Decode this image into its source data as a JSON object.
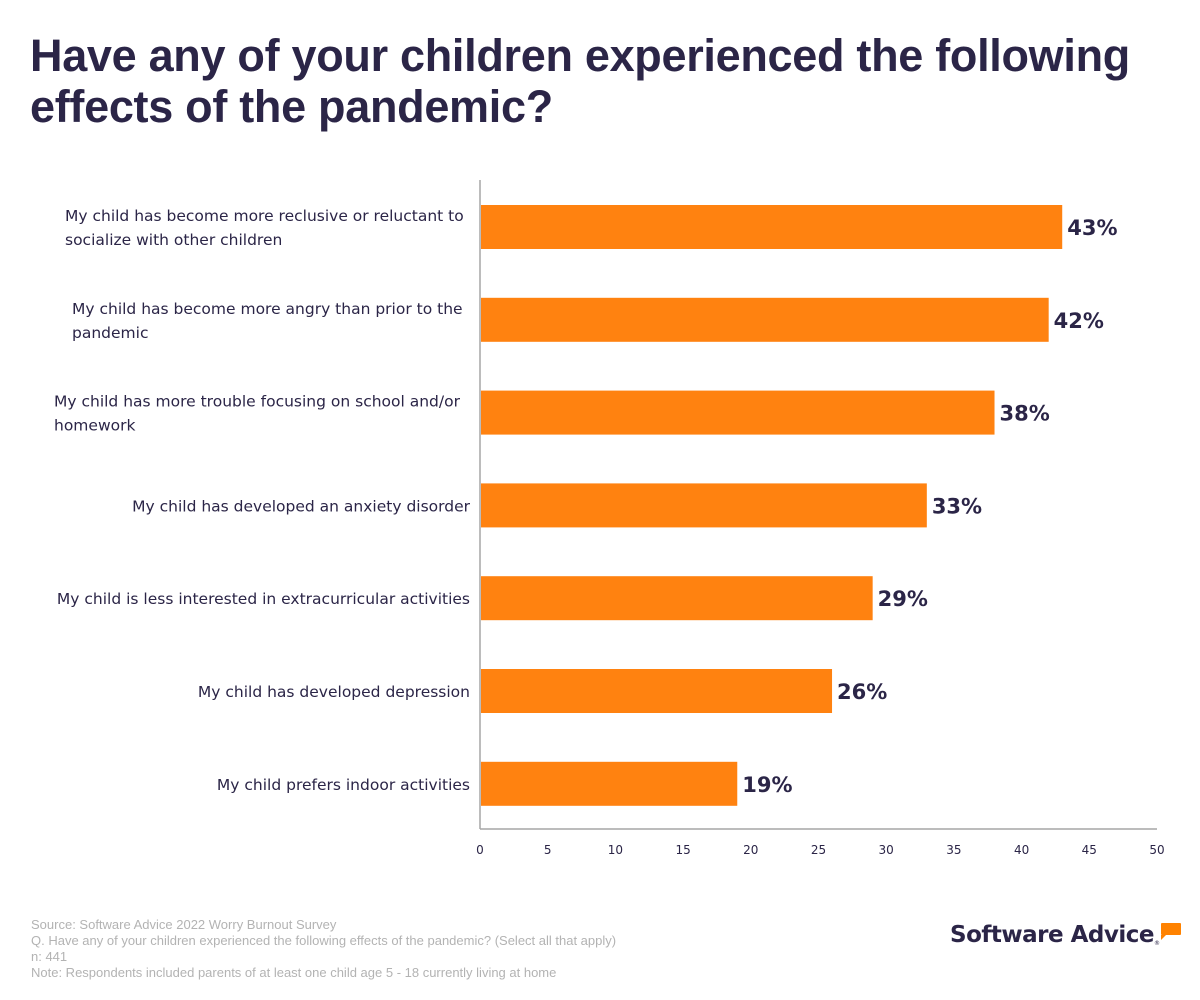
{
  "chart_data": {
    "type": "bar",
    "orientation": "horizontal",
    "title": "Have any of your children experienced the following effects of the pandemic?",
    "xlabel": "",
    "ylabel": "",
    "xlim": [
      0,
      50
    ],
    "xticks": [
      0,
      5,
      10,
      15,
      20,
      25,
      30,
      35,
      40,
      45,
      50
    ],
    "grid": false,
    "legend": null,
    "categories": [
      [
        "My child has become more reclusive or reluctant to",
        "socialize with other children"
      ],
      [
        "My child has become more angry than prior to the",
        "pandemic"
      ],
      [
        "My child has more trouble focusing on school and/or",
        "homework"
      ],
      [
        "My child has developed an anxiety disorder"
      ],
      [
        "My child is less interested in extracurricular activities"
      ],
      [
        "My child has developed depression"
      ],
      [
        "My child prefers indoor activities"
      ]
    ],
    "values": [
      43,
      42,
      38,
      33,
      29,
      26,
      19
    ],
    "data_labels": [
      "43%",
      "42%",
      "38%",
      "33%",
      "29%",
      "26%",
      "19%"
    ],
    "bar_color": "#ff8210",
    "label_color": "#2b2547"
  },
  "footer": {
    "source": "Source: Software Advice 2022 Worry Burnout Survey",
    "question": "Q. Have any of your children experienced the following effects of the pandemic? (Select all that apply)",
    "n": "n: 441",
    "note": "Note: Respondents included parents of at least one child age 5 - 18 currently living at home"
  },
  "logo": {
    "text": "Software Advice",
    "reg": "®"
  }
}
